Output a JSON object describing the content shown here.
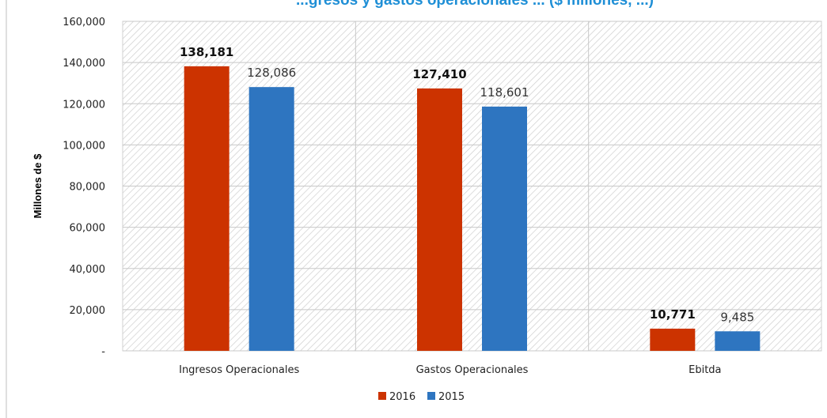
{
  "chart_data": {
    "type": "bar",
    "title": "...gresos y gastos operacionales ... ($ millones, ...)",
    "ylabel": "Millones de $",
    "xlabel": "",
    "categories": [
      "Ingresos Operacionales",
      "Gastos Operacionales",
      "Ebitda"
    ],
    "series": [
      {
        "name": "2016",
        "values": [
          138181,
          127410,
          10771
        ],
        "labels": [
          "138,181",
          "127,410",
          "10,771"
        ],
        "color": "#cc3300",
        "label_bold": true
      },
      {
        "name": "2015",
        "values": [
          128086,
          118601,
          9485
        ],
        "labels": [
          "128,086",
          "118,601",
          "9,485"
        ],
        "color": "#2e75c0",
        "label_bold": false
      }
    ],
    "ylim": [
      0,
      160000
    ],
    "yticks": [
      0,
      20000,
      40000,
      60000,
      80000,
      100000,
      120000,
      140000,
      160000
    ],
    "ytick_labels": [
      "-",
      "20,000",
      "40,000",
      "60,000",
      "80,000",
      "100,000",
      "120,000",
      "140,000",
      "160,000"
    ],
    "grid": true,
    "legend_position": "bottom",
    "title_color": "#1f8fd6"
  }
}
